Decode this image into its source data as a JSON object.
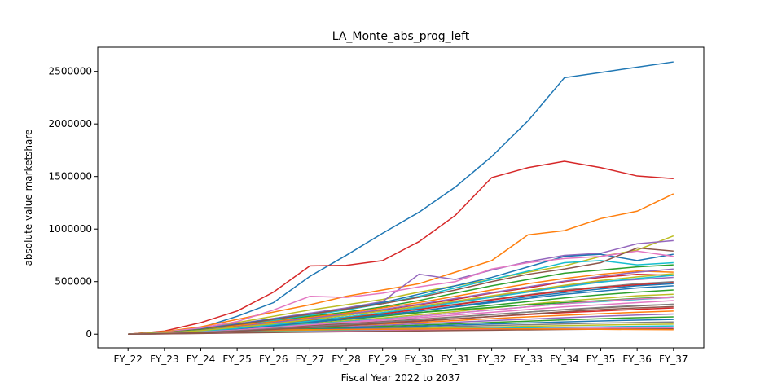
{
  "chart_data": {
    "type": "line",
    "title": "LA_Monte_abs_prog_left",
    "xlabel": "Fiscal Year 2022 to 2037",
    "ylabel": "absolute value marketshare",
    "categories": [
      "FY_22",
      "FY_23",
      "FY_24",
      "FY_25",
      "FY_26",
      "FY_27",
      "FY_28",
      "FY_29",
      "FY_30",
      "FY_31",
      "FY_32",
      "FY_33",
      "FY_34",
      "FY_35",
      "FY_36",
      "FY_37"
    ],
    "ylim": [
      -130000,
      2730000
    ],
    "yticks": [
      0,
      500000,
      1000000,
      1500000,
      2000000,
      2500000
    ],
    "ytick_labels": [
      "0",
      "500000",
      "1000000",
      "1500000",
      "2000000",
      "2500000"
    ],
    "grid": false,
    "legend": "none",
    "series": [
      {
        "color": "#1f77b4",
        "values": [
          0,
          5000,
          60000,
          170000,
          300000,
          550000,
          750000,
          960000,
          1160000,
          1400000,
          1690000,
          2030000,
          2440000,
          2490000,
          2540000,
          2590000
        ]
      },
      {
        "color": "#d62728",
        "values": [
          0,
          30000,
          110000,
          220000,
          400000,
          650000,
          655000,
          700000,
          880000,
          1130000,
          1490000,
          1585000,
          1645000,
          1585000,
          1505000,
          1480000
        ]
      },
      {
        "color": "#ff7f0e",
        "values": [
          0,
          25000,
          70000,
          140000,
          210000,
          280000,
          360000,
          420000,
          480000,
          590000,
          700000,
          945000,
          985000,
          1100000,
          1170000,
          1335000
        ]
      },
      {
        "color": "#bcbd22",
        "values": [
          0,
          22000,
          60000,
          110000,
          170000,
          230000,
          280000,
          330000,
          400000,
          460000,
          520000,
          590000,
          650000,
          740000,
          800000,
          935000
        ]
      },
      {
        "color": "#9467bd",
        "values": [
          0,
          20000,
          55000,
          100000,
          150000,
          200000,
          250000,
          310000,
          570000,
          520000,
          610000,
          690000,
          750000,
          770000,
          860000,
          890000
        ]
      },
      {
        "color": "#1f77b4",
        "values": [
          0,
          18000,
          50000,
          95000,
          145000,
          190000,
          240000,
          300000,
          380000,
          460000,
          540000,
          640000,
          740000,
          760000,
          700000,
          760000
        ]
      },
      {
        "color": "#e377c2",
        "values": [
          0,
          20000,
          60000,
          120000,
          230000,
          360000,
          350000,
          390000,
          450000,
          500000,
          620000,
          680000,
          720000,
          740000,
          790000,
          740000
        ]
      },
      {
        "color": "#17becf",
        "values": [
          0,
          15000,
          45000,
          85000,
          130000,
          180000,
          230000,
          290000,
          360000,
          440000,
          520000,
          600000,
          680000,
          700000,
          660000,
          680000
        ]
      },
      {
        "color": "#8c564b",
        "values": [
          0,
          15000,
          45000,
          90000,
          140000,
          190000,
          240000,
          290000,
          350000,
          420000,
          500000,
          570000,
          620000,
          680000,
          820000,
          790000
        ]
      },
      {
        "color": "#2ca02c",
        "values": [
          0,
          14000,
          42000,
          80000,
          120000,
          170000,
          210000,
          260000,
          320000,
          390000,
          460000,
          520000,
          580000,
          610000,
          640000,
          660000
        ]
      },
      {
        "color": "#ff7f0e",
        "values": [
          0,
          13000,
          40000,
          80000,
          120000,
          160000,
          200000,
          250000,
          300000,
          360000,
          420000,
          480000,
          530000,
          570000,
          600000,
          590000
        ]
      },
      {
        "color": "#d62728",
        "values": [
          0,
          12000,
          38000,
          70000,
          110000,
          150000,
          190000,
          230000,
          280000,
          330000,
          390000,
          440000,
          500000,
          540000,
          570000,
          560000
        ]
      },
      {
        "color": "#9467bd",
        "values": [
          0,
          12000,
          35000,
          65000,
          100000,
          140000,
          180000,
          220000,
          260000,
          310000,
          360000,
          410000,
          460000,
          500000,
          520000,
          540000
        ]
      },
      {
        "color": "#7f7f7f",
        "values": [
          0,
          11000,
          33000,
          60000,
          95000,
          130000,
          165000,
          200000,
          240000,
          285000,
          330000,
          375000,
          420000,
          450000,
          480000,
          500000
        ]
      },
      {
        "color": "#1f77b4",
        "values": [
          0,
          10000,
          30000,
          55000,
          85000,
          120000,
          150000,
          185000,
          220000,
          260000,
          300000,
          340000,
          380000,
          410000,
          440000,
          460000
        ]
      },
      {
        "color": "#2ca02c",
        "values": [
          0,
          10000,
          28000,
          52000,
          80000,
          110000,
          140000,
          170000,
          205000,
          240000,
          275000,
          310000,
          345000,
          375000,
          400000,
          420000
        ]
      },
      {
        "color": "#bcbd22",
        "values": [
          0,
          9000,
          26000,
          48000,
          75000,
          100000,
          128000,
          155000,
          185000,
          215000,
          250000,
          285000,
          315000,
          340000,
          365000,
          380000
        ]
      },
      {
        "color": "#17becf",
        "values": [
          0,
          9000,
          24000,
          45000,
          70000,
          95000,
          120000,
          145000,
          170000,
          200000,
          230000,
          260000,
          290000,
          310000,
          330000,
          350000
        ]
      },
      {
        "color": "#e377c2",
        "values": [
          0,
          8000,
          22000,
          42000,
          64000,
          88000,
          110000,
          133000,
          157000,
          182000,
          208000,
          234000,
          260000,
          280000,
          300000,
          320000
        ]
      },
      {
        "color": "#8c564b",
        "values": [
          0,
          8000,
          20000,
          38000,
          58000,
          80000,
          100000,
          120000,
          142000,
          165000,
          188000,
          210000,
          232000,
          250000,
          268000,
          285000
        ]
      },
      {
        "color": "#d62728",
        "values": [
          0,
          7000,
          18000,
          34000,
          52000,
          72000,
          90000,
          108000,
          127000,
          147000,
          167000,
          187000,
          205000,
          220000,
          236000,
          250000
        ]
      },
      {
        "color": "#ff7f0e",
        "values": [
          0,
          7000,
          16000,
          30000,
          46000,
          63000,
          80000,
          96000,
          112000,
          130000,
          148000,
          165000,
          180000,
          195000,
          208000,
          220000
        ]
      },
      {
        "color": "#9467bd",
        "values": [
          0,
          6000,
          15000,
          27000,
          41000,
          56000,
          70000,
          84000,
          99000,
          114000,
          129000,
          143000,
          157000,
          170000,
          182000,
          192000
        ]
      },
      {
        "color": "#2ca02c",
        "values": [
          0,
          6000,
          13000,
          24000,
          36000,
          49000,
          62000,
          74000,
          86000,
          99000,
          112000,
          124000,
          136000,
          147000,
          157000,
          165000
        ]
      },
      {
        "color": "#1f77b4",
        "values": [
          0,
          5000,
          12000,
          21000,
          32000,
          43000,
          54000,
          64000,
          75000,
          86000,
          97000,
          107000,
          117000,
          126000,
          134000,
          140000
        ]
      },
      {
        "color": "#7f7f7f",
        "values": [
          0,
          5000,
          11000,
          19000,
          28000,
          37000,
          46000,
          55000,
          64000,
          73000,
          82000,
          90000,
          98000,
          105000,
          111000,
          116000
        ]
      },
      {
        "color": "#bcbd22",
        "values": [
          0,
          4000,
          10000,
          17000,
          24000,
          32000,
          40000,
          47000,
          54000,
          61000,
          68000,
          75000,
          81000,
          87000,
          92000,
          96000
        ]
      },
      {
        "color": "#17becf",
        "values": [
          0,
          4000,
          9000,
          15000,
          21000,
          27000,
          33000,
          39000,
          45000,
          51000,
          56000,
          61000,
          66000,
          70000,
          74000,
          78000
        ]
      },
      {
        "color": "#e377c2",
        "values": [
          0,
          3000,
          8000,
          13000,
          18000,
          23000,
          28000,
          33000,
          37000,
          42000,
          46000,
          50000,
          54000,
          57000,
          60000,
          62000
        ]
      },
      {
        "color": "#8c564b",
        "values": [
          0,
          3000,
          7000,
          11000,
          15000,
          19000,
          23000,
          27000,
          31000,
          35000,
          38000,
          41000,
          44000,
          47000,
          49000,
          50000
        ]
      },
      {
        "color": "#ff7f0e",
        "values": [
          0,
          20000,
          35000,
          38000,
          40000,
          42000,
          44000,
          46000,
          48000,
          50000,
          52000,
          50000,
          48000,
          46000,
          44000,
          42000
        ]
      },
      {
        "color": "#2ca02c",
        "values": [
          0,
          15000,
          40000,
          70000,
          100000,
          130000,
          155000,
          180000,
          205000,
          230000,
          255000,
          280000,
          300000,
          320000,
          340000,
          355000
        ]
      },
      {
        "color": "#d62728",
        "values": [
          0,
          10000,
          30000,
          60000,
          95000,
          130000,
          160000,
          195000,
          235000,
          280000,
          325000,
          370000,
          410000,
          445000,
          470000,
          490000
        ]
      },
      {
        "color": "#1f77b4",
        "values": [
          0,
          8000,
          25000,
          50000,
          80000,
          110000,
          145000,
          180000,
          220000,
          265000,
          310000,
          355000,
          395000,
          430000,
          460000,
          480000
        ]
      },
      {
        "color": "#9467bd",
        "values": [
          0,
          12000,
          36000,
          70000,
          110000,
          150000,
          190000,
          235000,
          285000,
          340000,
          395000,
          450000,
          505000,
          550000,
          590000,
          620000
        ]
      },
      {
        "color": "#17becf",
        "values": [
          0,
          9000,
          28000,
          55000,
          90000,
          125000,
          165000,
          205000,
          250000,
          300000,
          350000,
          400000,
          450000,
          495000,
          530000,
          560000
        ]
      },
      {
        "color": "#bcbd22",
        "values": [
          0,
          11000,
          34000,
          66000,
          100000,
          140000,
          180000,
          220000,
          265000,
          315000,
          365000,
          415000,
          465000,
          510000,
          545000,
          575000
        ]
      },
      {
        "color": "#e377c2",
        "values": [
          0,
          7000,
          20000,
          40000,
          65000,
          90000,
          115000,
          140000,
          170000,
          200000,
          230000,
          260000,
          290000,
          315000,
          335000,
          350000
        ]
      },
      {
        "color": "#7f7f7f",
        "values": [
          0,
          6000,
          17000,
          33000,
          52000,
          72000,
          93000,
          115000,
          138000,
          162000,
          186000,
          210000,
          234000,
          255000,
          272000,
          285000
        ]
      },
      {
        "color": "#8c564b",
        "values": [
          0,
          5000,
          14000,
          28000,
          45000,
          63000,
          82000,
          102000,
          123000,
          145000,
          168000,
          191000,
          214000,
          234000,
          250000,
          262000
        ]
      }
    ]
  }
}
